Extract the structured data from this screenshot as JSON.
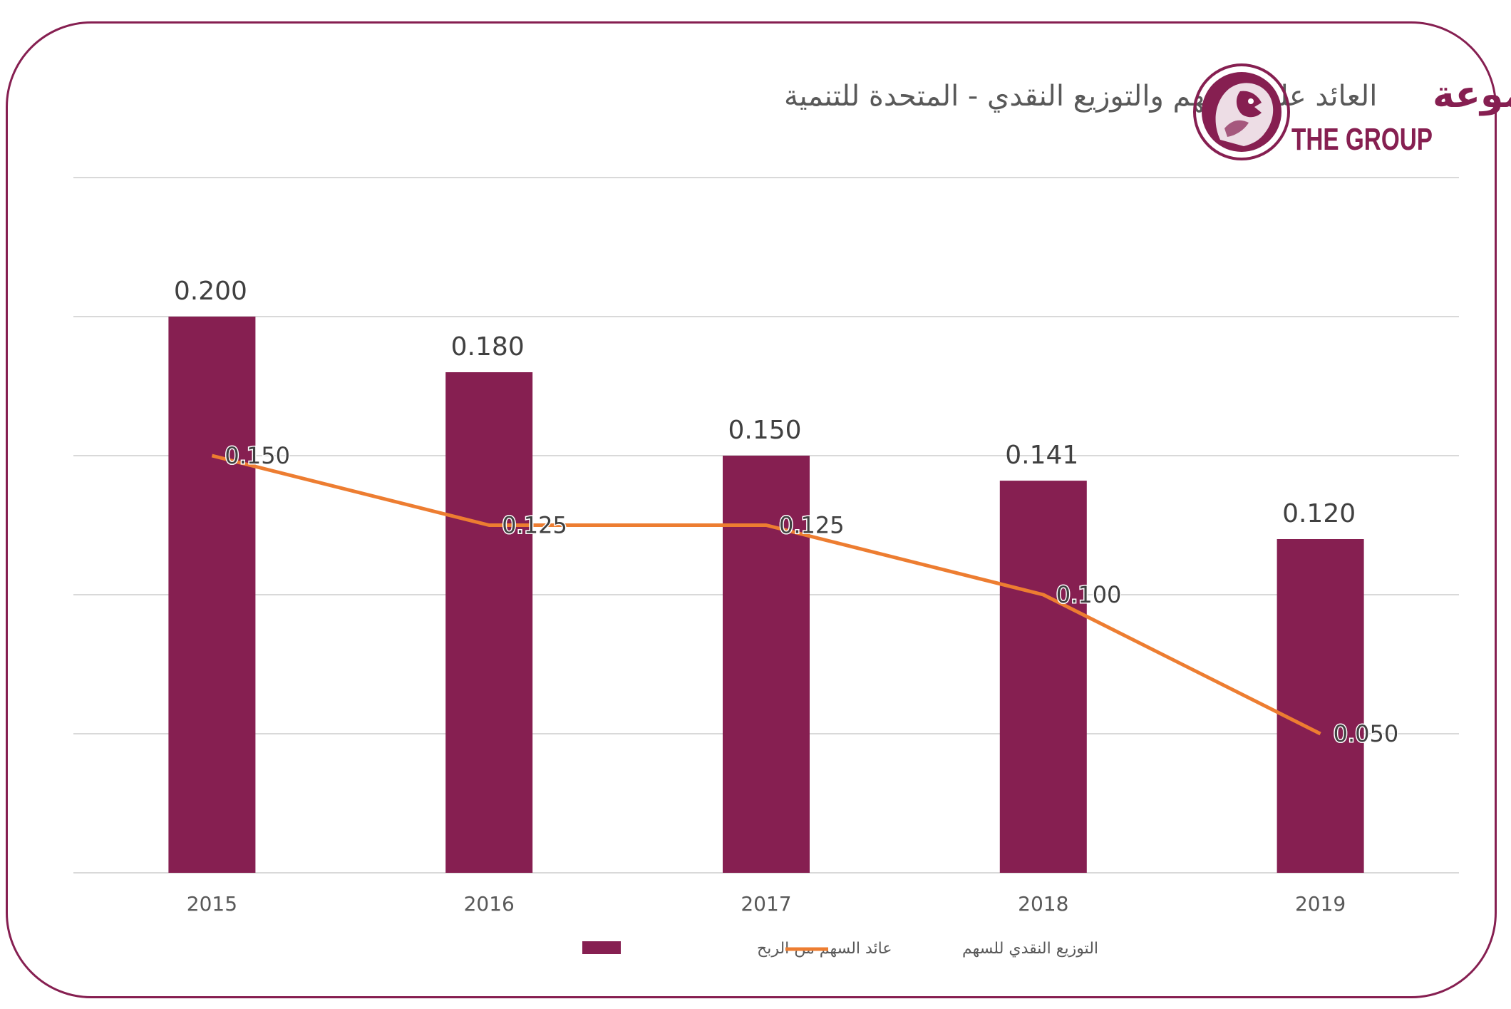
{
  "logo": {
    "arabic": "المجموعة",
    "english": "THE GROUP"
  },
  "colors": {
    "bar": "#861f51",
    "line": "#ed7d31",
    "grid": "#d9d9d9",
    "frame": "#861f51"
  },
  "chart_data": {
    "type": "bar",
    "title": "العائد على السهم والتوزيع النقدي - المتحدة للتنمية",
    "categories": [
      "2015",
      "2016",
      "2017",
      "2018",
      "2019"
    ],
    "ylim": [
      0,
      0.25
    ],
    "grid": true,
    "legend_position": "bottom",
    "series": [
      {
        "name": "عائد السهم من الربح",
        "type": "bar",
        "values": [
          0.2,
          0.18,
          0.15,
          0.141,
          0.12
        ],
        "labels": [
          "0.200",
          "0.180",
          "0.150",
          "0.141",
          "0.120"
        ]
      },
      {
        "name": "التوزيع النقدي للسهم",
        "type": "line",
        "values": [
          0.15,
          0.125,
          0.125,
          0.1,
          0.05
        ],
        "labels": [
          "0.150",
          "0.125",
          "0.125",
          "0.100",
          "0.050"
        ]
      }
    ]
  }
}
